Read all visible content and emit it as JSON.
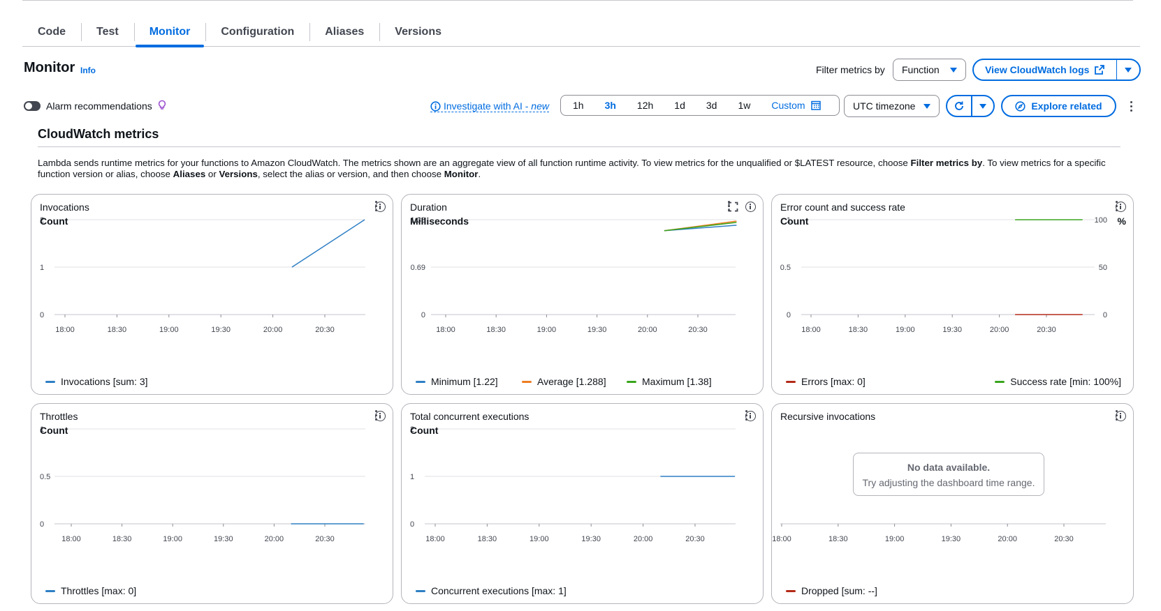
{
  "tabs": [
    {
      "label": "Code",
      "active": false
    },
    {
      "label": "Test",
      "active": false
    },
    {
      "label": "Monitor",
      "active": true
    },
    {
      "label": "Configuration",
      "active": false
    },
    {
      "label": "Aliases",
      "active": false
    },
    {
      "label": "Versions",
      "active": false
    }
  ],
  "header": {
    "title": "Monitor",
    "info": "Info",
    "filter_label": "Filter metrics by",
    "filter_value": "Function",
    "view_logs": "View CloudWatch logs"
  },
  "toolbar": {
    "alarm_label": "Alarm recommendations",
    "investigate": "Investigate with AI - ",
    "investigate_new": "new",
    "ranges": [
      "1h",
      "3h",
      "12h",
      "1d",
      "3d",
      "1w"
    ],
    "active_range": "3h",
    "custom": "Custom",
    "timezone": "UTC timezone",
    "explore": "Explore related"
  },
  "cloudwatch": {
    "title": "CloudWatch metrics",
    "desc_1": "Lambda sends runtime metrics for your functions to Amazon CloudWatch. The metrics shown are an aggregate view of all function runtime activity. To view metrics for the unqualified or $LATEST resource, choose ",
    "desc_b1": "Filter metrics by",
    "desc_2": ". To view metrics for a specific function version or alias, choose ",
    "desc_b2": "Aliases",
    "desc_3": " or ",
    "desc_b3": "Versions",
    "desc_4": ", select the alias or version, and then choose ",
    "desc_b4": "Monitor",
    "desc_5": "."
  },
  "colors": {
    "blue": "#2e7fc4",
    "orange": "#ee7d22",
    "green": "#3aa51e",
    "red": "#b42a18",
    "accent": "#006ce0"
  },
  "chart_data": [
    {
      "type": "line",
      "title": "Invocations",
      "ylabel": "Count",
      "yticks": [
        "2",
        "1",
        "0"
      ],
      "ylim": [
        0,
        2
      ],
      "xticks": [
        "18:00",
        "18:30",
        "19:00",
        "19:30",
        "20:00",
        "20:30"
      ],
      "series": [
        {
          "name": "Invocations [sum: 3]",
          "color": "#2e7fc4",
          "points": [
            [
              "20:11",
              1
            ],
            [
              "20:53",
              2
            ]
          ]
        }
      ]
    },
    {
      "type": "line",
      "title": "Duration",
      "ylabel": "Milliseconds",
      "yticks": [
        "1.38",
        "0.69",
        "0"
      ],
      "ylim": [
        0,
        1.38
      ],
      "xticks": [
        "18:00",
        "18:30",
        "19:00",
        "19:30",
        "20:00",
        "20:30"
      ],
      "series": [
        {
          "name": "Minimum [1.22]",
          "color": "#2e7fc4",
          "points": [
            [
              "20:10",
              1.22
            ],
            [
              "20:53",
              1.3
            ]
          ]
        },
        {
          "name": "Average [1.288]",
          "color": "#ee7d22",
          "points": [
            [
              "20:10",
              1.22
            ],
            [
              "20:53",
              1.36
            ]
          ]
        },
        {
          "name": "Maximum [1.38]",
          "color": "#3aa51e",
          "points": [
            [
              "20:10",
              1.22
            ],
            [
              "20:53",
              1.34
            ]
          ]
        }
      ]
    },
    {
      "type": "line",
      "title": "Error count and success rate",
      "ylabel": "Count",
      "ylabel_right": "%",
      "yticks": [
        "1",
        "0.5",
        "0"
      ],
      "yticks_right": [
        "100",
        "50",
        "0"
      ],
      "xticks": [
        "18:00",
        "18:30",
        "19:00",
        "19:30",
        "20:00",
        "20:30"
      ],
      "series": [
        {
          "name": "Errors [max: 0]",
          "color": "#b42a18",
          "points": [
            [
              "20:10",
              0
            ],
            [
              "20:53",
              0
            ]
          ]
        },
        {
          "name": "Success rate [min: 100%]",
          "color": "#3aa51e",
          "axis": "right",
          "points": [
            [
              "20:10",
              100
            ],
            [
              "20:53",
              100
            ]
          ]
        }
      ]
    },
    {
      "type": "line",
      "title": "Throttles",
      "ylabel": "Count",
      "yticks": [
        "1",
        "0.5",
        "0"
      ],
      "ylim": [
        0,
        1
      ],
      "xticks": [
        "18:00",
        "18:30",
        "19:00",
        "19:30",
        "20:00",
        "20:30"
      ],
      "series": [
        {
          "name": "Throttles [max: 0]",
          "color": "#2e7fc4",
          "points": [
            [
              "20:10",
              0
            ],
            [
              "20:53",
              0
            ]
          ]
        }
      ]
    },
    {
      "type": "line",
      "title": "Total concurrent executions",
      "ylabel": "Count",
      "yticks": [
        "2",
        "1",
        "0"
      ],
      "ylim": [
        0,
        2
      ],
      "xticks": [
        "18:00",
        "18:30",
        "19:00",
        "19:30",
        "20:00",
        "20:30"
      ],
      "series": [
        {
          "name": "Concurrent executions [max: 1]",
          "color": "#2e7fc4",
          "points": [
            [
              "20:10",
              1
            ],
            [
              "20:53",
              1
            ]
          ]
        }
      ]
    },
    {
      "type": "line",
      "title": "Recursive invocations",
      "xticks": [
        "18:00",
        "18:30",
        "19:00",
        "19:30",
        "20:00",
        "20:30"
      ],
      "nodata_title": "No data available.",
      "nodata_text": "Try adjusting the dashboard time range.",
      "series": [
        {
          "name": "Dropped [sum: --]",
          "color": "#b42a18",
          "points": []
        }
      ]
    }
  ]
}
